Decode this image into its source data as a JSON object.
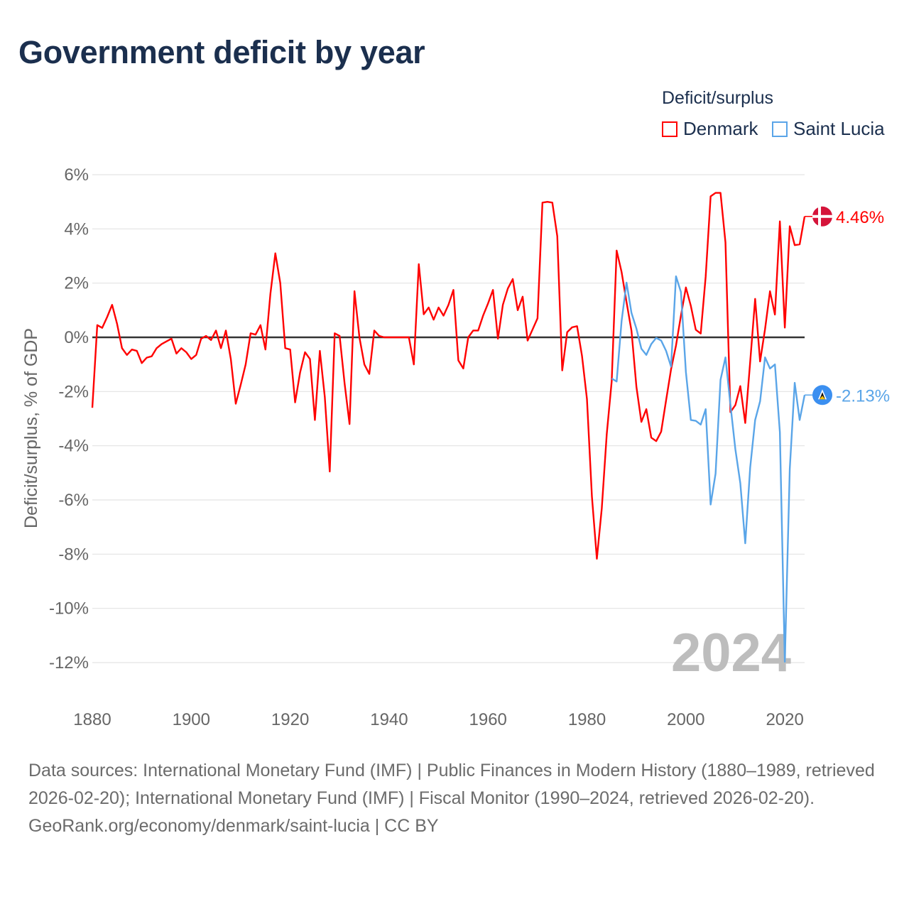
{
  "title": "Government deficit by year",
  "legend": {
    "title": "Deficit/surplus",
    "items": [
      {
        "label": "Denmark",
        "color": "#ff0000"
      },
      {
        "label": "Saint Lucia",
        "color": "#5aa5e8"
      }
    ]
  },
  "watermark_year": "2024",
  "footer": {
    "sources": "Data sources: International Monetary Fund (IMF) | Public Finances in Modern History (1880–1989, retrieved 2026-02-20); International Monetary Fund (IMF) | Fiscal Monitor (1990–2024, retrieved 2026-02-20).",
    "credit": "GeoRank.org/economy/denmark/saint-lucia | CC BY"
  },
  "chart_data": {
    "type": "line",
    "title": "Government deficit by year",
    "xlabel": "",
    "ylabel": "Deficit/surplus, % of GDP",
    "xlim": [
      1880,
      2024
    ],
    "ylim": [
      -12,
      6
    ],
    "x_ticks": [
      "1880",
      "1900",
      "1920",
      "1940",
      "1960",
      "1980",
      "2000",
      "2020"
    ],
    "y_ticks": [
      "6%",
      "4%",
      "2%",
      "0%",
      "-2%",
      "-4%",
      "-6%",
      "-8%",
      "-10%",
      "-12%"
    ],
    "grid": true,
    "legend_position": "top-right",
    "end_labels": [
      "4.46%",
      "-2.13%"
    ],
    "series": [
      {
        "name": "Denmark",
        "color": "#ff0000",
        "start_year": 1880,
        "values": [
          -2.6,
          0.45,
          0.35,
          0.75,
          1.2,
          0.5,
          -0.4,
          -0.65,
          -0.45,
          -0.5,
          -0.95,
          -0.75,
          -0.7,
          -0.4,
          -0.25,
          -0.15,
          -0.05,
          -0.6,
          -0.4,
          -0.55,
          -0.8,
          -0.65,
          -0.05,
          0.05,
          -0.1,
          0.25,
          -0.4,
          0.25,
          -0.8,
          -2.45,
          -1.75,
          -1.0,
          0.15,
          0.1,
          0.45,
          -0.45,
          1.6,
          3.1,
          2.0,
          -0.4,
          -0.45,
          -2.4,
          -1.3,
          -0.55,
          -0.8,
          -3.05,
          -0.5,
          -2.2,
          -4.95,
          0.15,
          0.05,
          -1.7,
          -3.2,
          1.7,
          0.0,
          -1.0,
          -1.35,
          0.25,
          0.05,
          0.0,
          0.0,
          0.0,
          0.0,
          0.0,
          0.0,
          -1.0,
          2.7,
          0.85,
          1.1,
          0.65,
          1.1,
          0.8,
          1.2,
          1.75,
          -0.85,
          -1.15,
          0.0,
          0.25,
          0.25,
          0.8,
          1.25,
          1.75,
          -0.05,
          1.2,
          1.8,
          2.15,
          1.0,
          1.5,
          -0.12,
          0.29,
          0.7,
          4.97,
          5.0,
          4.97,
          3.73,
          -1.22,
          0.19,
          0.37,
          0.41,
          -0.69,
          -2.28,
          -5.87,
          -8.17,
          -6.3,
          -3.57,
          -1.62,
          3.2,
          2.41,
          1.3,
          0.24,
          -1.83,
          -3.12,
          -2.65,
          -3.7,
          -3.83,
          -3.48,
          -2.32,
          -1.18,
          -0.3,
          0.8,
          1.84,
          1.16,
          0.28,
          0.14,
          2.24,
          5.2,
          5.33,
          5.33,
          3.5,
          -2.76,
          -2.5,
          -1.8,
          -3.16,
          -0.9,
          1.42,
          -0.89,
          0.3,
          1.7,
          0.84,
          4.28,
          0.36,
          4.1,
          3.4,
          3.43,
          4.46
        ]
      },
      {
        "name": "Saint Lucia",
        "color": "#5aa5e8",
        "start_year": 1985,
        "values": [
          -1.52,
          -1.63,
          0.6,
          2.02,
          0.9,
          0.32,
          -0.42,
          -0.65,
          -0.25,
          -0.02,
          -0.12,
          -0.5,
          -1.08,
          2.25,
          1.67,
          -1.28,
          -3.05,
          -3.08,
          -3.22,
          -2.65,
          -6.17,
          -5.03,
          -1.57,
          -0.74,
          -2.48,
          -4.13,
          -5.38,
          -7.6,
          -4.8,
          -3.05,
          -2.36,
          -0.74,
          -1.15,
          -1.0,
          -3.5,
          -11.97,
          -4.86,
          -1.68,
          -3.05,
          -2.13
        ]
      }
    ]
  }
}
